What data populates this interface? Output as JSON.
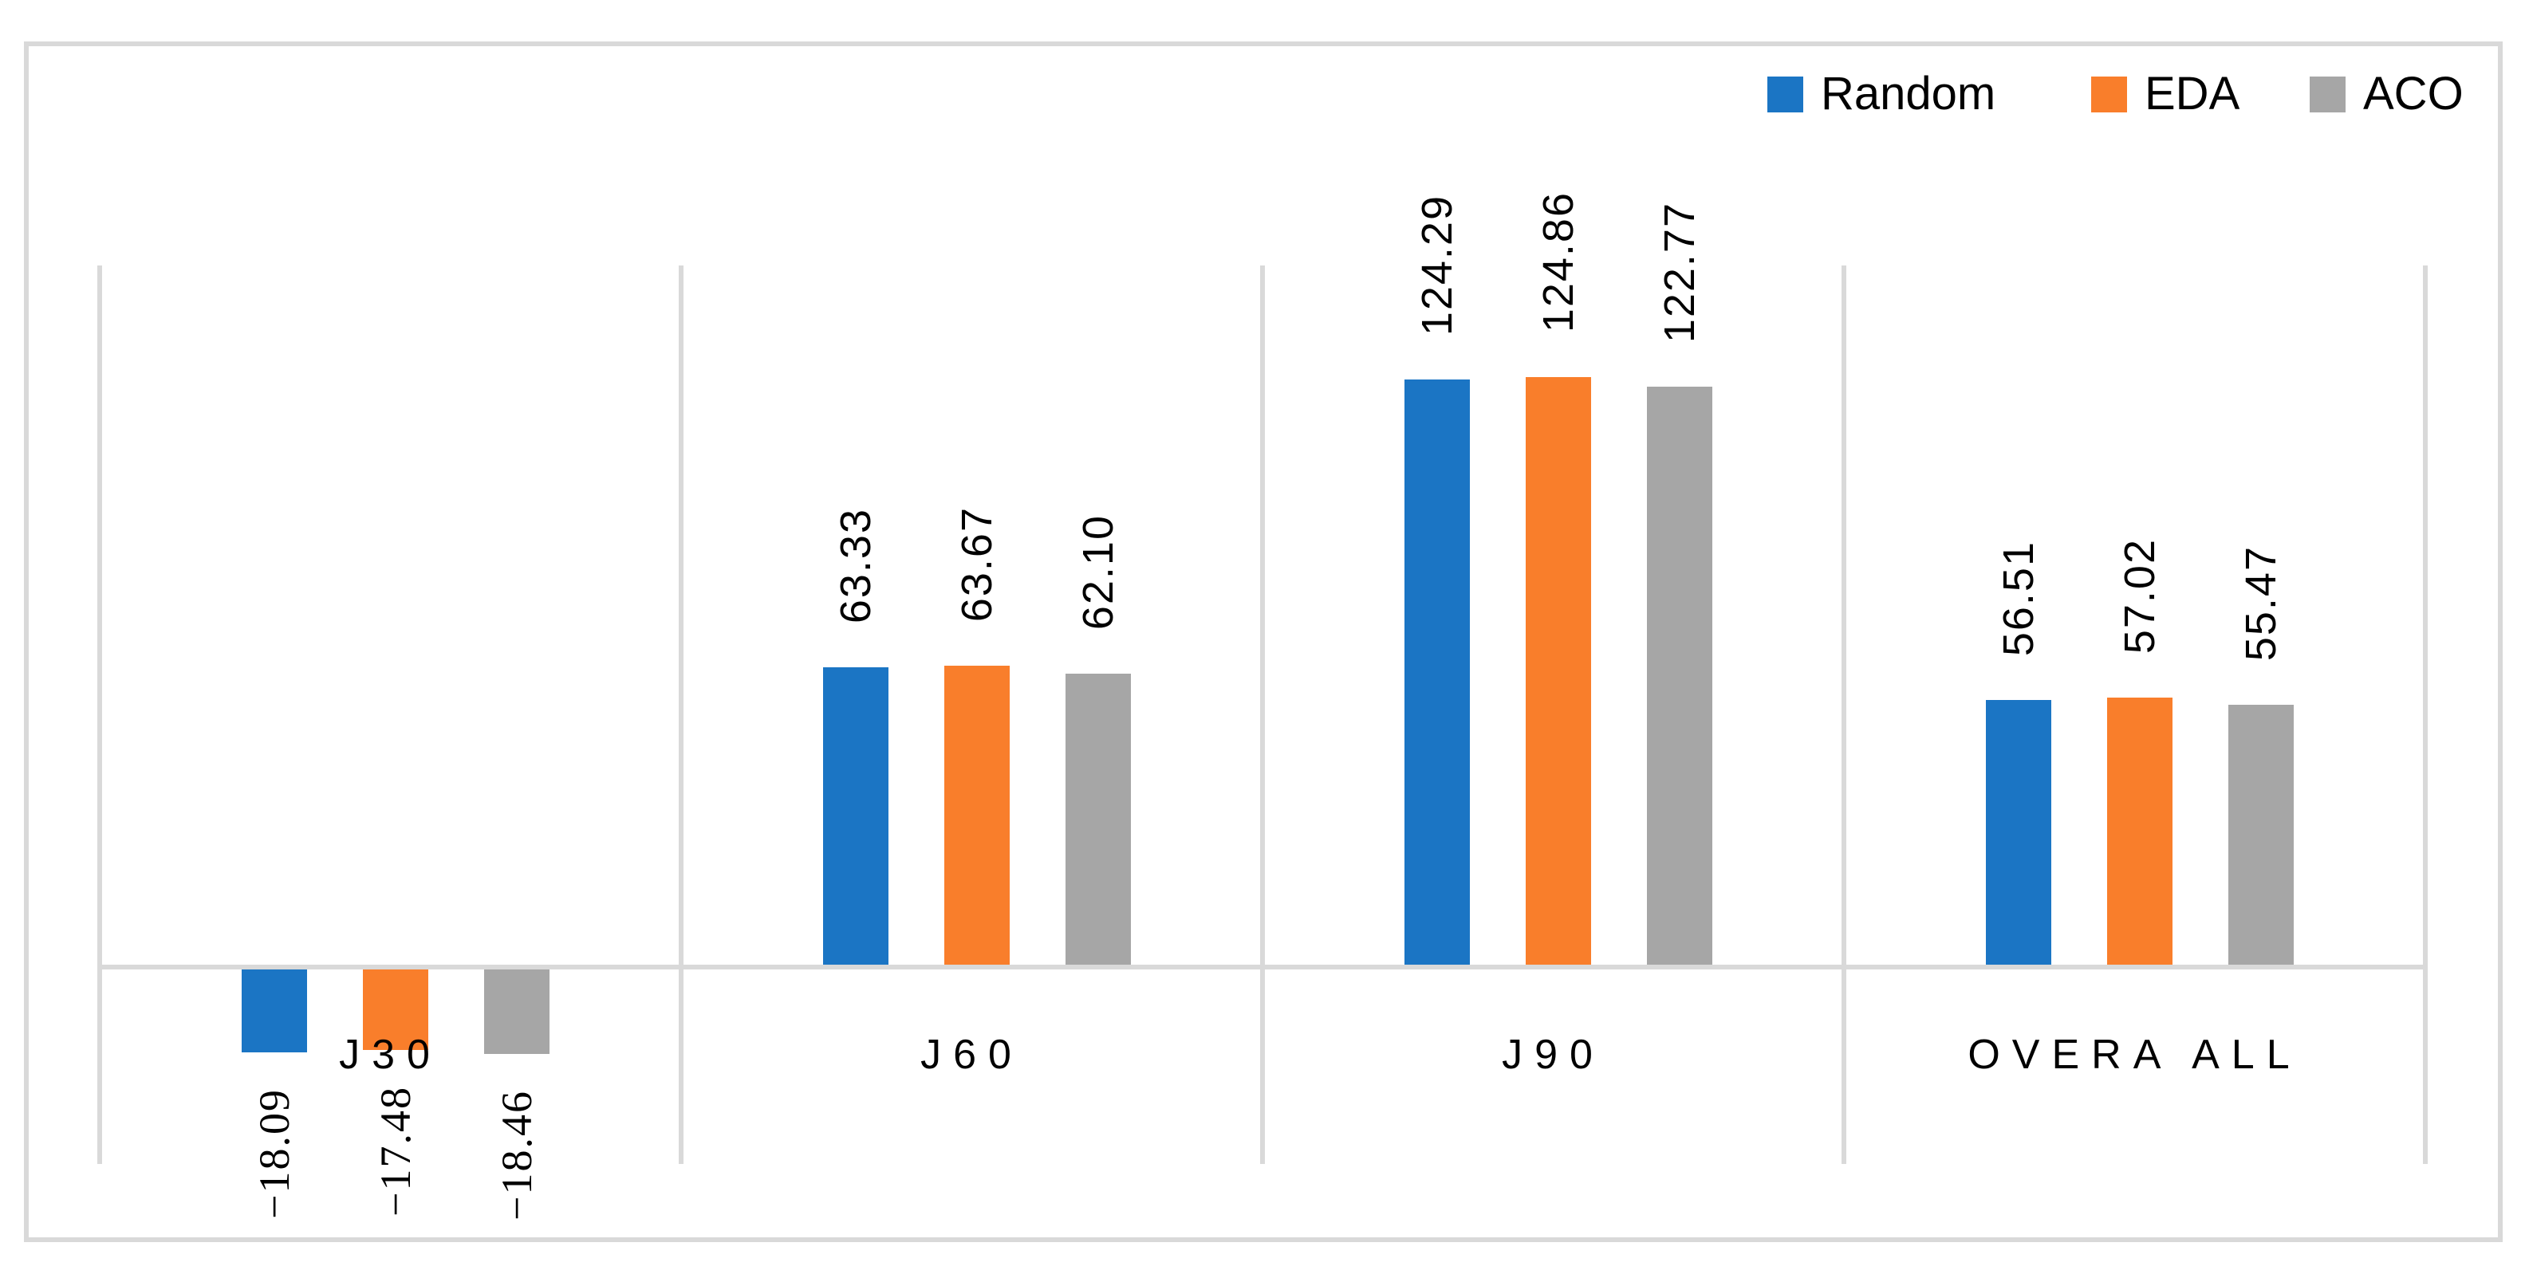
{
  "chart_data": {
    "type": "bar",
    "title": "",
    "categories": [
      "J30",
      "J60",
      "J90",
      "OVERA ALL"
    ],
    "series": [
      {
        "name": "Random",
        "color": "#1b75c4",
        "values": [
          -18.09,
          63.33,
          124.29,
          56.51
        ]
      },
      {
        "name": "EDA",
        "color": "#f97e2b",
        "values": [
          -17.48,
          63.67,
          124.86,
          57.02
        ]
      },
      {
        "name": "ACO",
        "color": "#a6a6a6",
        "values": [
          -18.46,
          62.1,
          122.77,
          55.47
        ]
      }
    ],
    "data_labels": [
      [
        "−18.09",
        "63.33",
        "124.29",
        "56.51"
      ],
      [
        "−17.48",
        "63.67",
        "124.86",
        "57.02"
      ],
      [
        "−18.46",
        "62.10",
        "122.77",
        "55.47"
      ]
    ],
    "legend": {
      "position": "top-right",
      "entries": [
        "Random",
        "EDA",
        "ACO"
      ]
    },
    "axes": {
      "value_axis_visible": false,
      "category_axis_at_zero": true,
      "gridlines": "vertical category separators",
      "ylim_approx": [
        -42,
        148
      ]
    }
  },
  "styles": {
    "gridline_color": "#d9d9d9",
    "border_color": "#d9d9d9",
    "text_color": "#000000",
    "background": "#ffffff"
  }
}
